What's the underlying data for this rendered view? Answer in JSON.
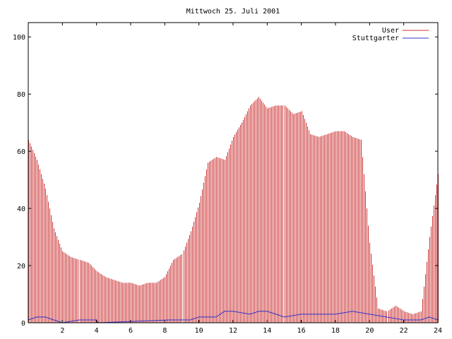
{
  "chart_data": {
    "type": "bar",
    "title": "Mittwoch 25. Juli 2001",
    "xlim": [
      0,
      24
    ],
    "ylim": [
      0,
      105
    ],
    "xticks": [
      2,
      4,
      6,
      8,
      10,
      12,
      14,
      16,
      18,
      20,
      22,
      24
    ],
    "yticks": [
      0,
      20,
      40,
      60,
      80,
      100
    ],
    "legend_position": "top-right",
    "series": [
      {
        "name": "User",
        "color": "#cc3333",
        "style": "impulses",
        "x": [
          0,
          0.5,
          1,
          1.5,
          2,
          2.5,
          3,
          3.5,
          4,
          4.5,
          5,
          5.5,
          6,
          6.5,
          7,
          7.5,
          8,
          8.5,
          9,
          9.5,
          10,
          10.5,
          11,
          11.5,
          12,
          12.5,
          13,
          13.5,
          14,
          14.5,
          15,
          15.5,
          16,
          16.5,
          17,
          17.5,
          18,
          18.5,
          19,
          19.5,
          20,
          20.5,
          21,
          21.5,
          22,
          22.5,
          23,
          23.5,
          24
        ],
        "values": [
          64,
          57,
          47,
          33,
          25,
          23,
          22,
          21,
          18,
          16,
          15,
          14,
          14,
          13,
          14,
          14,
          16,
          22,
          24,
          32,
          42,
          56,
          58,
          57,
          65,
          70,
          76,
          79,
          75,
          76,
          76,
          73,
          74,
          66,
          65,
          66,
          67,
          67,
          65,
          64,
          28,
          5,
          4,
          6,
          4,
          3,
          4,
          30,
          52
        ]
      },
      {
        "name": "Stuttgarter",
        "color": "#3333cc",
        "style": "line",
        "x": [
          0,
          0.5,
          1,
          1.5,
          2,
          3,
          4,
          4.1,
          8.3,
          9,
          9.5,
          10,
          11,
          11.5,
          12,
          13,
          13.5,
          14,
          15,
          16,
          17,
          18,
          19,
          20,
          21,
          22,
          23,
          23.5,
          24
        ],
        "values": [
          1,
          2,
          2,
          1,
          0,
          1,
          1,
          0,
          1,
          1,
          1,
          2,
          2,
          4,
          4,
          3,
          4,
          4,
          2,
          3,
          3,
          3,
          4,
          3,
          2,
          1,
          1,
          2,
          1
        ]
      }
    ]
  }
}
